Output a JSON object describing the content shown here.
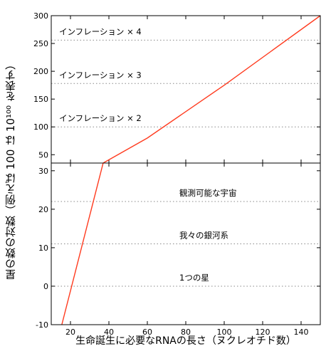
{
  "chart_data": [
    {
      "panel": "top",
      "type": "line",
      "xlim": [
        10,
        150
      ],
      "ylim": [
        35,
        300
      ],
      "yticks": [
        50,
        100,
        150,
        200,
        250,
        300
      ],
      "ylabel": "100 は 10¹⁰⁰ を表す",
      "series": [
        {
          "color": "#ff3b1f",
          "x": [
            37,
            60,
            100,
            150
          ],
          "y": [
            35,
            80,
            175,
            305
          ]
        }
      ],
      "reference_lines": [
        {
          "y": 256,
          "label": "インフレーション × 4"
        },
        {
          "y": 178,
          "label": "インフレーション × 3"
        },
        {
          "y": 100,
          "label": "インフレーション × 2"
        }
      ]
    },
    {
      "panel": "bottom",
      "type": "line",
      "xlim": [
        10,
        150
      ],
      "ylim": [
        -10,
        32
      ],
      "yticks": [
        -10,
        0,
        10,
        20,
        30
      ],
      "xticks": [
        20,
        40,
        60,
        80,
        100,
        120,
        140
      ],
      "ylabel": "星の数の対数（例えば",
      "xlabel": "生命誕生に必要なRNAの長さ（ヌクレオチド数）",
      "series": [
        {
          "color": "#ff3b1f",
          "x": [
            15.5,
            37
          ],
          "y": [
            -10,
            32
          ]
        }
      ],
      "reference_lines": [
        {
          "y": 22,
          "label": "観測可能な宇宙"
        },
        {
          "y": 11,
          "label": "我々の銀河系"
        },
        {
          "y": 0,
          "label": "1つの星"
        }
      ]
    }
  ],
  "labels": {
    "ylabel_full": "星の数の対数（例えば 100 は 10¹⁰⁰ を表す）",
    "xlabel": "生命誕生に必要なRNAの長さ（ヌクレオチド数）"
  }
}
